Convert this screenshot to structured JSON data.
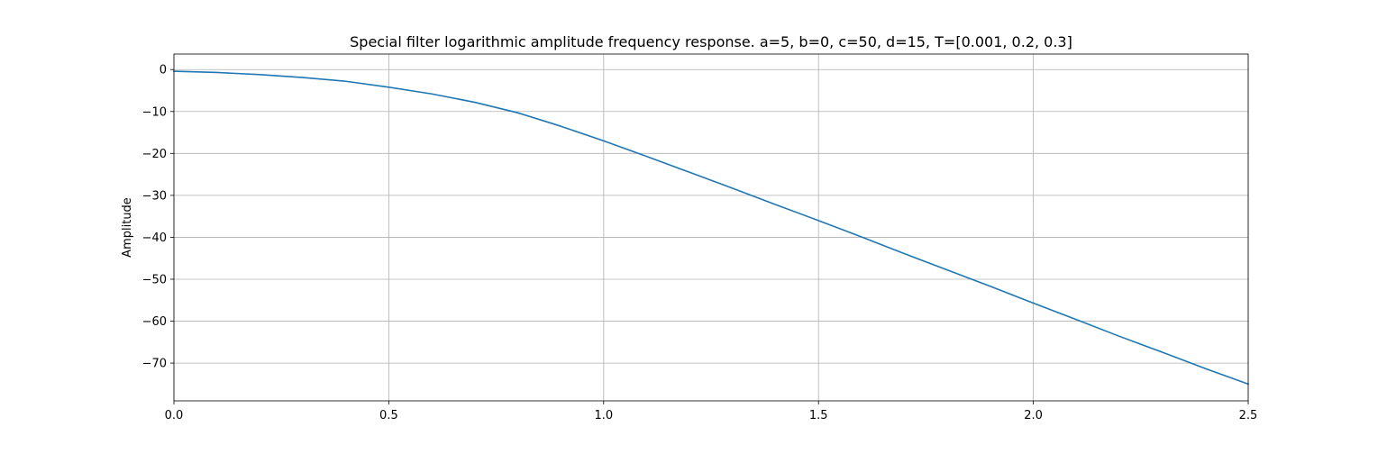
{
  "chart_data": {
    "type": "line",
    "title": "Special filter logarithmic amplitude frequency response. a=5, b=0, c=50, d=15, T=[0.001, 0.2, 0.3]",
    "xlabel": "",
    "ylabel": "Amplitude",
    "xlim": [
      0,
      2.5
    ],
    "ylim": [
      -79,
      3.7
    ],
    "grid": true,
    "line_color": "#1f77b4",
    "grid_color": "#b0b0b0",
    "x_ticks": [
      0.0,
      0.5,
      1.0,
      1.5,
      2.0,
      2.5
    ],
    "x_tick_labels": [
      "0.0",
      "0.5",
      "1.0",
      "1.5",
      "2.0",
      "2.5"
    ],
    "y_ticks": [
      0,
      -10,
      -20,
      -30,
      -40,
      -50,
      -60,
      -70
    ],
    "y_tick_labels": [
      "0",
      "−10",
      "−20",
      "−30",
      "−40",
      "−50",
      "−60",
      "−70"
    ],
    "series": [
      {
        "x": [
          0.0,
          0.1,
          0.2,
          0.3,
          0.4,
          0.5,
          0.6,
          0.7,
          0.8,
          0.9,
          1.0,
          1.1,
          1.2,
          1.3,
          1.4,
          1.5,
          1.6,
          1.7,
          1.8,
          1.9,
          2.0,
          2.1,
          2.2,
          2.3,
          2.4,
          2.5
        ],
        "y": [
          -0.4,
          -0.7,
          -1.2,
          -1.9,
          -2.8,
          -4.2,
          -5.8,
          -7.8,
          -10.3,
          -13.5,
          -17.0,
          -20.7,
          -24.5,
          -28.3,
          -32.2,
          -36.0,
          -39.9,
          -43.9,
          -47.8,
          -51.7,
          -55.7,
          -59.6,
          -63.6,
          -67.4,
          -71.3,
          -75.0
        ]
      }
    ]
  }
}
